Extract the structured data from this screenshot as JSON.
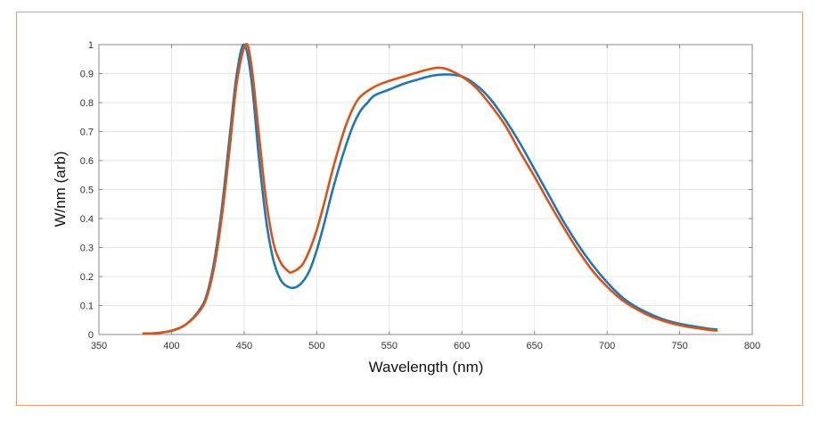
{
  "chart_data": {
    "type": "line",
    "title": "",
    "xlabel": "Wavelength (nm)",
    "ylabel": "W/nm (arb)",
    "xlim": [
      350,
      800
    ],
    "ylim": [
      0,
      1
    ],
    "xticks": [
      "350",
      "400",
      "450",
      "500",
      "550",
      "600",
      "650",
      "700",
      "750",
      "800"
    ],
    "yticks": [
      "0",
      "0.1",
      "0.2",
      "0.3",
      "0.4",
      "0.5",
      "0.6",
      "0.7",
      "0.8",
      "0.9",
      "1"
    ],
    "grid": true,
    "series": [
      {
        "color": "#1f77b4",
        "x": [
          380,
          390,
          400,
          410,
          420,
          425,
          430,
          435,
          440,
          445,
          450,
          455,
          460,
          465,
          470,
          475,
          480,
          485,
          490,
          495,
          500,
          505,
          510,
          515,
          520,
          525,
          530,
          535,
          540,
          550,
          560,
          570,
          580,
          590,
          600,
          610,
          620,
          630,
          640,
          650,
          660,
          670,
          680,
          690,
          700,
          710,
          720,
          730,
          740,
          750,
          760,
          770,
          776
        ],
        "y": [
          0.003,
          0.005,
          0.013,
          0.035,
          0.09,
          0.15,
          0.27,
          0.45,
          0.68,
          0.9,
          1.0,
          0.88,
          0.62,
          0.4,
          0.26,
          0.19,
          0.165,
          0.162,
          0.18,
          0.22,
          0.29,
          0.38,
          0.48,
          0.57,
          0.65,
          0.72,
          0.77,
          0.8,
          0.825,
          0.845,
          0.865,
          0.88,
          0.893,
          0.897,
          0.89,
          0.86,
          0.81,
          0.74,
          0.66,
          0.57,
          0.48,
          0.39,
          0.31,
          0.24,
          0.18,
          0.13,
          0.095,
          0.07,
          0.05,
          0.037,
          0.028,
          0.02,
          0.017
        ]
      },
      {
        "color": "#d95319",
        "x": [
          380,
          390,
          400,
          410,
          420,
          425,
          430,
          435,
          440,
          445,
          451,
          455,
          460,
          465,
          470,
          475,
          480,
          483,
          490,
          495,
          500,
          505,
          510,
          515,
          520,
          525,
          530,
          540,
          550,
          560,
          570,
          580,
          585,
          590,
          600,
          610,
          620,
          630,
          640,
          650,
          660,
          670,
          680,
          690,
          700,
          710,
          720,
          730,
          740,
          750,
          760,
          770,
          776
        ],
        "y": [
          0.003,
          0.005,
          0.013,
          0.035,
          0.085,
          0.14,
          0.25,
          0.42,
          0.64,
          0.87,
          1.0,
          0.93,
          0.7,
          0.47,
          0.32,
          0.25,
          0.22,
          0.215,
          0.24,
          0.29,
          0.36,
          0.45,
          0.55,
          0.64,
          0.72,
          0.78,
          0.82,
          0.855,
          0.875,
          0.89,
          0.905,
          0.918,
          0.92,
          0.915,
          0.89,
          0.85,
          0.79,
          0.72,
          0.63,
          0.545,
          0.455,
          0.37,
          0.29,
          0.22,
          0.165,
          0.12,
          0.088,
          0.063,
          0.045,
          0.032,
          0.023,
          0.016,
          0.013
        ]
      }
    ]
  },
  "frame_color": "#ec9c74"
}
